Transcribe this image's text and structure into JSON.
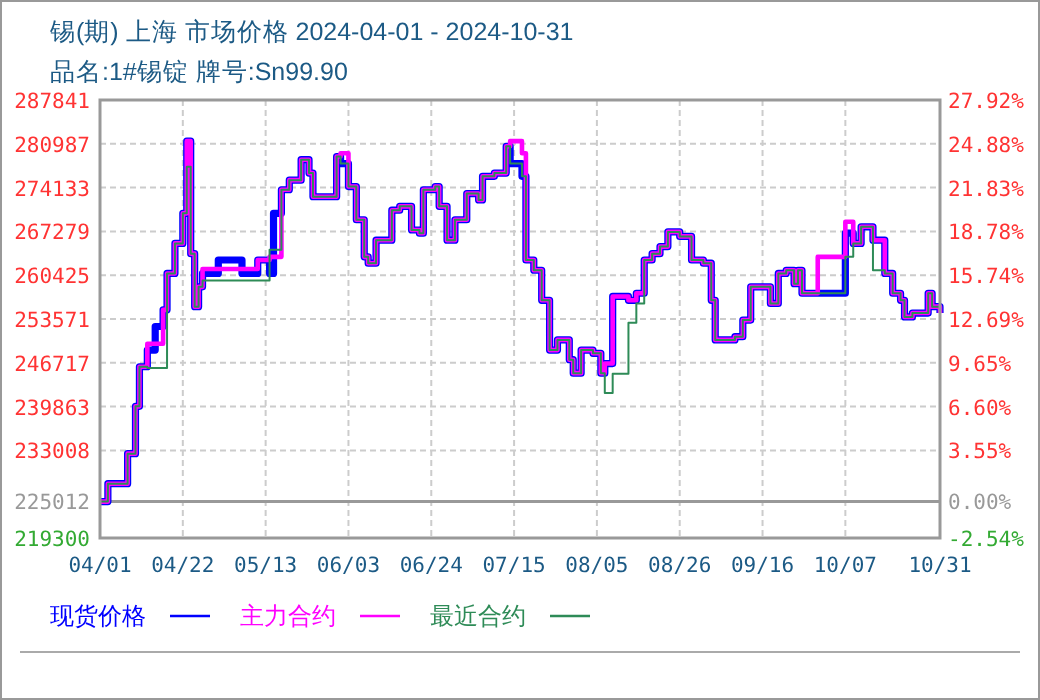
{
  "chart_data": {
    "type": "step",
    "title": "锡(期) 上海 市场价格 2024-04-01 - 2024-10-31",
    "subtitle": "品名:1#锡锭 牌号:Sn99.90",
    "x": [
      "2024-04-01",
      "2024-04-03",
      "2024-04-08",
      "2024-04-10",
      "2024-04-11",
      "2024-04-13",
      "2024-04-15",
      "2024-04-17",
      "2024-04-18",
      "2024-04-20",
      "2024-04-22",
      "2024-04-23",
      "2024-04-24",
      "2024-04-25",
      "2024-04-26",
      "2024-04-27",
      "2024-05-01",
      "2024-05-07",
      "2024-05-11",
      "2024-05-14",
      "2024-05-15",
      "2024-05-17",
      "2024-05-19",
      "2024-05-22",
      "2024-05-24",
      "2024-05-25",
      "2024-05-31",
      "2024-06-01",
      "2024-06-03",
      "2024-06-05",
      "2024-06-07",
      "2024-06-08",
      "2024-06-10",
      "2024-06-14",
      "2024-06-16",
      "2024-06-19",
      "2024-06-21",
      "2024-06-22",
      "2024-06-25",
      "2024-06-26",
      "2024-06-28",
      "2024-06-30",
      "2024-07-03",
      "2024-07-06",
      "2024-07-07",
      "2024-07-10",
      "2024-07-13",
      "2024-07-14",
      "2024-07-17",
      "2024-07-18",
      "2024-07-20",
      "2024-07-22",
      "2024-07-24",
      "2024-07-26",
      "2024-07-29",
      "2024-07-30",
      "2024-08-01",
      "2024-08-04",
      "2024-08-06",
      "2024-08-07",
      "2024-08-09",
      "2024-08-13",
      "2024-08-15",
      "2024-08-17",
      "2024-08-19",
      "2024-08-21",
      "2024-08-23",
      "2024-08-26",
      "2024-08-29",
      "2024-09-01",
      "2024-09-03",
      "2024-09-04",
      "2024-09-09",
      "2024-09-11",
      "2024-09-13",
      "2024-09-18",
      "2024-09-20",
      "2024-09-22",
      "2024-09-24",
      "2024-09-25",
      "2024-09-26",
      "2024-09-30",
      "2024-10-07",
      "2024-10-09",
      "2024-10-11",
      "2024-10-14",
      "2024-10-17",
      "2024-10-19",
      "2024-10-21",
      "2024-10-22",
      "2024-10-24",
      "2024-10-28",
      "2024-10-29",
      "2024-10-31"
    ],
    "series": [
      {
        "name": "现货价格",
        "color": "#0000ff",
        "values": [
          225000,
          227800,
          232500,
          239900,
          246100,
          248700,
          252400,
          255000,
          260700,
          265400,
          270100,
          281400,
          263800,
          255500,
          258600,
          260700,
          262800,
          260700,
          262800,
          260700,
          270100,
          273800,
          275300,
          278500,
          276400,
          272700,
          279000,
          277900,
          274300,
          269100,
          263300,
          262300,
          265900,
          270600,
          271200,
          267500,
          267000,
          273800,
          274300,
          271200,
          265900,
          269100,
          273200,
          272200,
          275900,
          276400,
          280600,
          277900,
          275900,
          262800,
          261200,
          256500,
          248700,
          250300,
          247200,
          245100,
          248700,
          248200,
          245100,
          246600,
          257100,
          256500,
          257600,
          262800,
          263800,
          264900,
          267200,
          266500,
          262800,
          262300,
          256500,
          250300,
          250800,
          253400,
          258600,
          256000,
          260700,
          261200,
          259100,
          261200,
          257600,
          257600,
          267000,
          265400,
          268000,
          265900,
          260700,
          257600,
          256500,
          253900,
          254500,
          257600,
          255500,
          254500
        ]
      },
      {
        "name": "主力合约",
        "color": "#ff00ff",
        "values": [
          225000,
          227800,
          232500,
          239900,
          246100,
          249700,
          249700,
          255000,
          260700,
          265400,
          270100,
          281400,
          263800,
          255500,
          258600,
          261400,
          261400,
          261400,
          262800,
          263300,
          263300,
          273800,
          275300,
          278500,
          276400,
          272700,
          279000,
          279500,
          274300,
          269100,
          263300,
          262300,
          265900,
          270600,
          271200,
          267500,
          267000,
          273800,
          274300,
          271200,
          265900,
          269100,
          273200,
          272200,
          275900,
          276400,
          280600,
          281400,
          279500,
          262800,
          261200,
          256500,
          248700,
          250300,
          247200,
          245100,
          248700,
          248200,
          245100,
          246600,
          257100,
          256500,
          257600,
          262800,
          263800,
          264900,
          267200,
          266500,
          262800,
          262300,
          256500,
          250300,
          250800,
          253400,
          258600,
          256000,
          260700,
          261200,
          259100,
          261200,
          257600,
          263300,
          268800,
          265400,
          268000,
          265900,
          260700,
          257600,
          256500,
          253900,
          254500,
          257600,
          255500,
          254500
        ]
      },
      {
        "name": "最近合约",
        "color": "#2e8b57",
        "values": [
          225000,
          227800,
          232500,
          239900,
          246100,
          245900,
          245900,
          245900,
          260700,
          265400,
          270100,
          277400,
          263800,
          255500,
          258600,
          259600,
          259600,
          259600,
          259600,
          264400,
          264400,
          273800,
          275300,
          278500,
          276400,
          272700,
          279000,
          277900,
          274300,
          269100,
          263300,
          262300,
          265900,
          270600,
          271200,
          267500,
          267000,
          273800,
          274300,
          271200,
          265900,
          269100,
          273200,
          272200,
          275900,
          276400,
          280600,
          277900,
          275900,
          262800,
          261200,
          256500,
          248700,
          250300,
          247200,
          245100,
          248700,
          248200,
          245100,
          242000,
          245000,
          253000,
          256000,
          262800,
          263800,
          264900,
          267200,
          266500,
          262800,
          262300,
          256500,
          250300,
          250800,
          253400,
          258600,
          256000,
          260700,
          261200,
          259100,
          261200,
          257600,
          257600,
          263300,
          265400,
          268000,
          261200,
          260700,
          257600,
          256500,
          253900,
          254500,
          257600,
          255500,
          254500
        ]
      }
    ],
    "xlim": [
      "2024-04-01",
      "2024-10-31"
    ],
    "xticks": [
      {
        "value": "2024-04-01",
        "label": "04/01"
      },
      {
        "value": "2024-04-22",
        "label": "04/22"
      },
      {
        "value": "2024-05-13",
        "label": "05/13"
      },
      {
        "value": "2024-06-03",
        "label": "06/03"
      },
      {
        "value": "2024-06-24",
        "label": "06/24"
      },
      {
        "value": "2024-07-15",
        "label": "07/15"
      },
      {
        "value": "2024-08-05",
        "label": "08/05"
      },
      {
        "value": "2024-08-26",
        "label": "08/26"
      },
      {
        "value": "2024-09-16",
        "label": "09/16"
      },
      {
        "value": "2024-10-07",
        "label": "10/07"
      },
      {
        "value": "2024-10-31",
        "label": "10/31"
      }
    ],
    "ylim": [
      219300,
      287841
    ],
    "yticks": [
      219300,
      225012,
      233008,
      239863,
      246717,
      253571,
      260425,
      267279,
      274133,
      280987,
      287841
    ],
    "y2lim": [
      -2.54,
      27.92
    ],
    "y2ticks": [
      {
        "value": -2.54,
        "label": "-2.54%"
      },
      {
        "value": 0,
        "label": "0.00%"
      },
      {
        "value": 3.55,
        "label": "3.55%"
      },
      {
        "value": 6.6,
        "label": "6.60%"
      },
      {
        "value": 9.65,
        "label": "9.65%"
      },
      {
        "value": 12.69,
        "label": "12.69%"
      },
      {
        "value": 15.74,
        "label": "15.74%"
      },
      {
        "value": 18.78,
        "label": "18.78%"
      },
      {
        "value": 21.83,
        "label": "21.83%"
      },
      {
        "value": 24.88,
        "label": "24.88%"
      },
      {
        "value": 27.92,
        "label": "27.92%"
      }
    ],
    "ref_lines": [
      {
        "axis": "y",
        "value": 225012,
        "color": "#999999"
      }
    ],
    "grid": true,
    "legend": "bottom"
  }
}
